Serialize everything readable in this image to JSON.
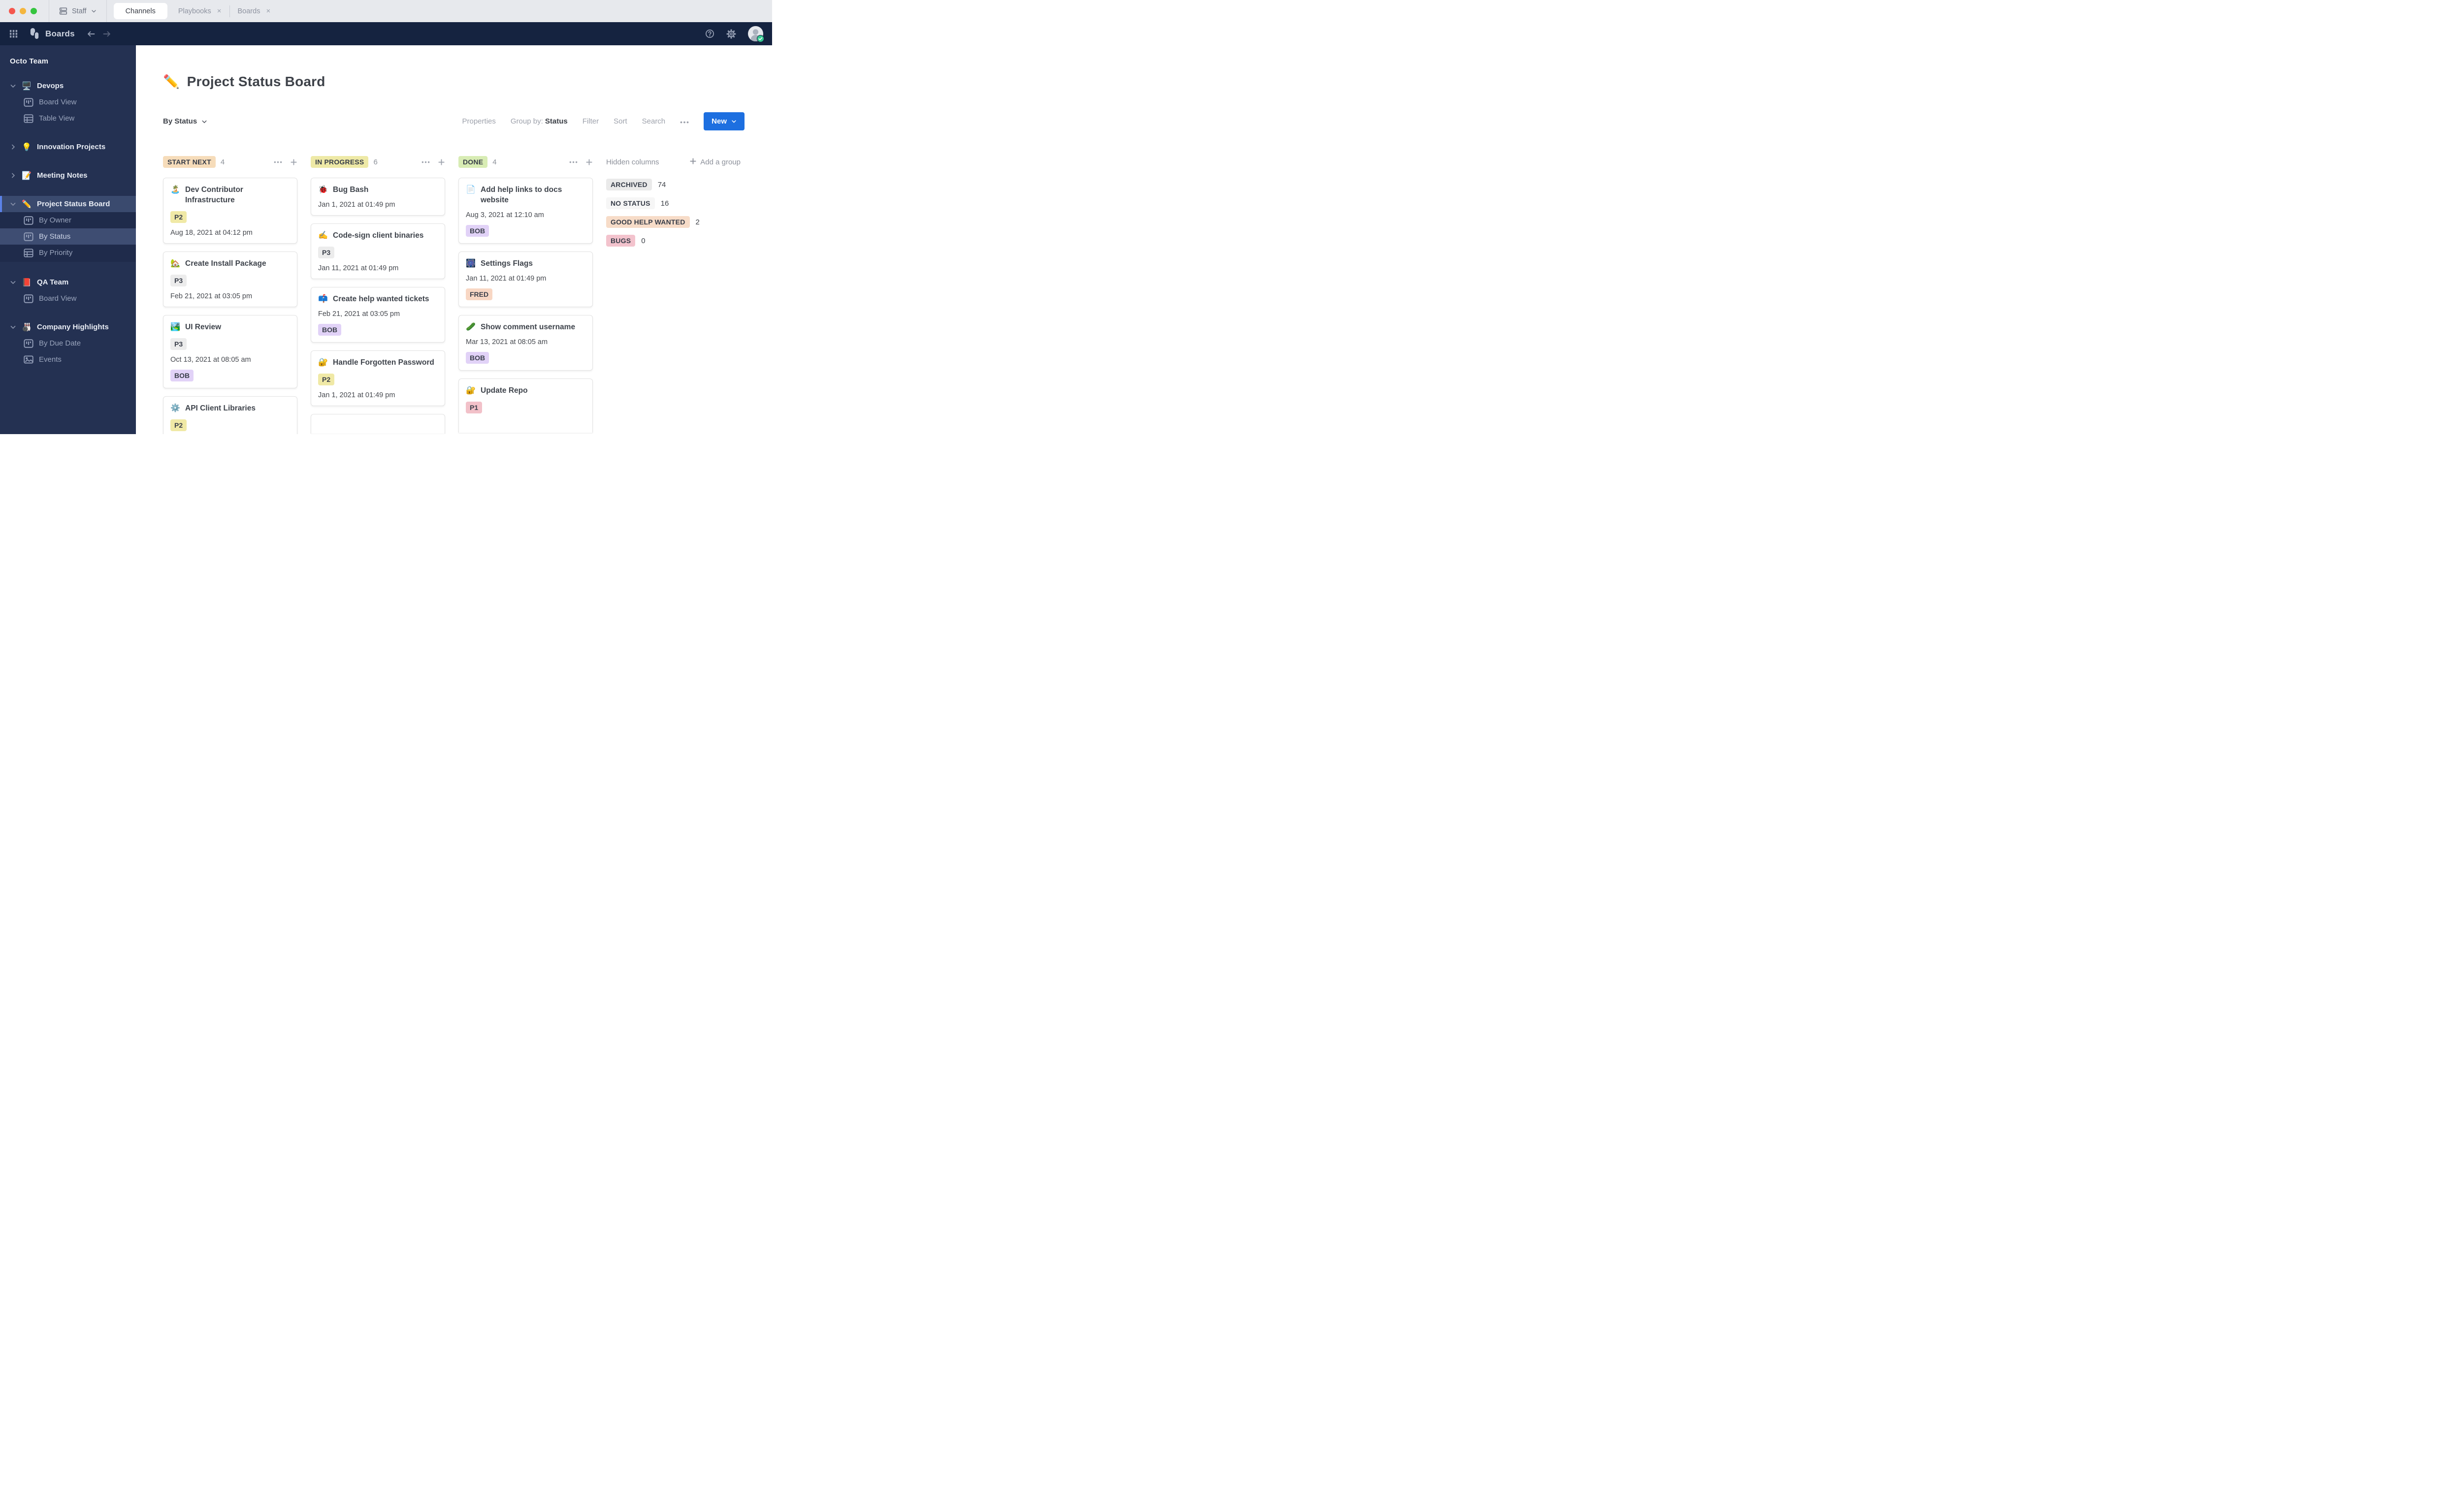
{
  "colors": {
    "navbar_bg": "#152340",
    "sidebar_bg": "#243152",
    "sidebar_selected": "#3a4a6e",
    "sidebar_accent": "#5b82e8",
    "new_button": "#1d6fe0",
    "traffic": [
      "#f5574e",
      "#f4b63f",
      "#35c53f"
    ],
    "online_status": "#35c890"
  },
  "tabbar": {
    "server_label": "Staff",
    "tabs": [
      {
        "label": "Channels",
        "active": true
      },
      {
        "label": "Playbooks",
        "closable": true
      },
      {
        "label": "Boards",
        "closable": true
      }
    ],
    "close_glyph": "×"
  },
  "navbar": {
    "app_title": "Boards"
  },
  "sidebar": {
    "team": "Octo Team",
    "boards": [
      {
        "emoji": "🖥️",
        "name": "Devops",
        "expanded": true,
        "views": [
          {
            "icon": "board",
            "label": "Board View"
          },
          {
            "icon": "table",
            "label": "Table View"
          }
        ]
      },
      {
        "emoji": "💡",
        "name": "Innovation Projects",
        "expanded": false,
        "views": []
      },
      {
        "emoji": "📝",
        "name": "Meeting Notes",
        "expanded": false,
        "views": []
      },
      {
        "emoji": "✏️",
        "name": "Project Status Board",
        "expanded": true,
        "active": true,
        "views": [
          {
            "icon": "board",
            "label": "By Owner"
          },
          {
            "icon": "board",
            "label": "By Status",
            "active": true
          },
          {
            "icon": "table",
            "label": "By Priority"
          }
        ]
      },
      {
        "emoji": "📕",
        "name": "QA Team",
        "expanded": true,
        "views": [
          {
            "icon": "board",
            "label": "Board View"
          }
        ]
      },
      {
        "emoji": "🎳",
        "name": "Company Highlights",
        "expanded": true,
        "views": [
          {
            "icon": "board",
            "label": "By Due Date"
          },
          {
            "icon": "image",
            "label": "Events"
          }
        ]
      }
    ]
  },
  "board": {
    "icon": "✏️",
    "title": "Project Status Board",
    "toolbar": {
      "view_selector": "By Status",
      "properties": "Properties",
      "group_by_label": "Group by:",
      "group_by_value": "Status",
      "filter": "Filter",
      "sort": "Sort",
      "search": "Search",
      "new_label": "New"
    },
    "columns": [
      {
        "label": "START NEXT",
        "bg": "#f6dcba",
        "count": 4,
        "cards": [
          {
            "emoji": "🏝️",
            "title": "Dev Contributor Infrastructure",
            "props": [
              {
                "t": "P2",
                "bg": "#f0e9a6"
              }
            ],
            "date": "Aug 18, 2021 at 04:12 pm"
          },
          {
            "emoji": "🏡",
            "title": "Create Install Package",
            "props": [
              {
                "t": "P3",
                "bg": "#ececec"
              }
            ],
            "date": "Feb 21, 2021 at 03:05 pm"
          },
          {
            "emoji": "🏞️",
            "title": "UI Review",
            "props": [
              {
                "t": "P3",
                "bg": "#ececec"
              }
            ],
            "date": "Oct 13, 2021 at 08:05 am",
            "person": {
              "t": "BOB",
              "bg": "#e1d2f7"
            }
          },
          {
            "emoji": "⚙️",
            "title": "API Client Libraries",
            "props": [
              {
                "t": "P2",
                "bg": "#f0e9a6"
              }
            ],
            "cut": true
          }
        ]
      },
      {
        "label": "IN PROGRESS",
        "bg": "#eee9a6",
        "count": 6,
        "cards": [
          {
            "emoji": "🐞",
            "title": "Bug Bash",
            "date": "Jan 1, 2021 at 01:49 pm"
          },
          {
            "emoji": "✍️",
            "title": "Code-sign client binaries",
            "props": [
              {
                "t": "P3",
                "bg": "#ececec"
              }
            ],
            "date": "Jan 11, 2021 at 01:49 pm"
          },
          {
            "emoji": "📫",
            "title": "Create help wanted tickets",
            "date": "Feb 21, 2021 at 03:05 pm",
            "person": {
              "t": "BOB",
              "bg": "#e1d2f7"
            }
          },
          {
            "emoji": "🔐",
            "title": "Handle Forgotten Password",
            "props": [
              {
                "t": "P2",
                "bg": "#f0e9a6"
              }
            ],
            "date": "Jan 1, 2021 at 01:49 pm"
          },
          {
            "partial": true,
            "cut": true
          }
        ]
      },
      {
        "label": "DONE",
        "bg": "#d8ecb4",
        "count": 4,
        "cards": [
          {
            "emoji": "📄",
            "title": "Add help links to docs website",
            "date": "Aug 3, 2021 at 12:10 am",
            "person": {
              "t": "BOB",
              "bg": "#e1d2f7"
            }
          },
          {
            "emoji": "🎆",
            "title": "Settings Flags",
            "date": "Jan 11, 2021 at 01:49 pm",
            "person": {
              "t": "FRED",
              "bg": "#f8d7c4"
            }
          },
          {
            "emoji": "🥒",
            "title": "Show comment username",
            "date": "Mar 13, 2021 at 08:05 am",
            "person": {
              "t": "BOB",
              "bg": "#e1d2f7"
            }
          },
          {
            "emoji": "🔐",
            "title": "Update Repo",
            "props": [
              {
                "t": "P1",
                "bg": "#f2c1c9"
              }
            ],
            "cut": true
          }
        ]
      }
    ],
    "hidden": {
      "label": "Hidden columns",
      "add_group": "Add a group",
      "items": [
        {
          "t": "ARCHIVED",
          "bg": "#eaeaea",
          "count": 74
        },
        {
          "t": "NO STATUS",
          "bg": "#f6f6f6",
          "count": 16
        },
        {
          "t": "GOOD HELP WANTED",
          "bg": "#f7dcc8",
          "count": 2
        },
        {
          "t": "BUGS",
          "bg": "#f3c3cd",
          "count": 0
        }
      ]
    }
  }
}
